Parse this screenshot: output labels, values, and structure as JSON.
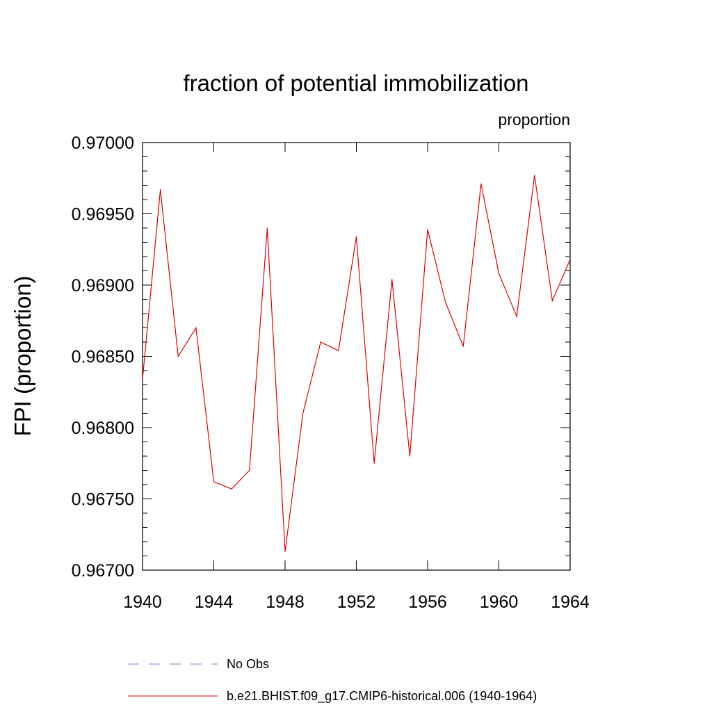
{
  "chart_data": {
    "type": "line",
    "title": "fraction of potential immobilization",
    "subtitle": "proportion",
    "xlabel": "",
    "ylabel": "FPI  (proportion)",
    "xlim": [
      1940,
      1964
    ],
    "ylim": [
      0.967,
      0.97
    ],
    "xticks": [
      1940,
      1944,
      1948,
      1952,
      1956,
      1960,
      1964
    ],
    "xtick_labels": [
      "1940",
      "1944",
      "1948",
      "1952",
      "1956",
      "1960",
      "1964"
    ],
    "yticks": [
      0.967,
      0.9675,
      0.968,
      0.9685,
      0.969,
      0.9695,
      0.97
    ],
    "ytick_labels": [
      "0.96700",
      "0.96750",
      "0.96800",
      "0.96850",
      "0.96900",
      "0.96950",
      "0.97000"
    ],
    "grid": false,
    "legend_position": "bottom",
    "series": [
      {
        "name": "No Obs",
        "style": "dashed",
        "color": "#7b7bd0",
        "x": [],
        "values": []
      },
      {
        "name": "b.e21.BHIST.f09_g17.CMIP6-historical.006 (1940-1964)",
        "style": "solid",
        "color": "#e00000",
        "x": [
          1940,
          1941,
          1942,
          1943,
          1944,
          1945,
          1946,
          1947,
          1948,
          1949,
          1950,
          1951,
          1952,
          1953,
          1954,
          1955,
          1956,
          1957,
          1958,
          1959,
          1960,
          1961,
          1962,
          1963,
          1964
        ],
        "values": [
          0.96834,
          0.96967,
          0.9685,
          0.9687,
          0.96762,
          0.96757,
          0.9677,
          0.9694,
          0.96713,
          0.9681,
          0.9686,
          0.96854,
          0.96934,
          0.96775,
          0.96904,
          0.9678,
          0.96939,
          0.96888,
          0.96857,
          0.96971,
          0.96908,
          0.96878,
          0.96977,
          0.96889,
          0.96918
        ]
      }
    ]
  }
}
